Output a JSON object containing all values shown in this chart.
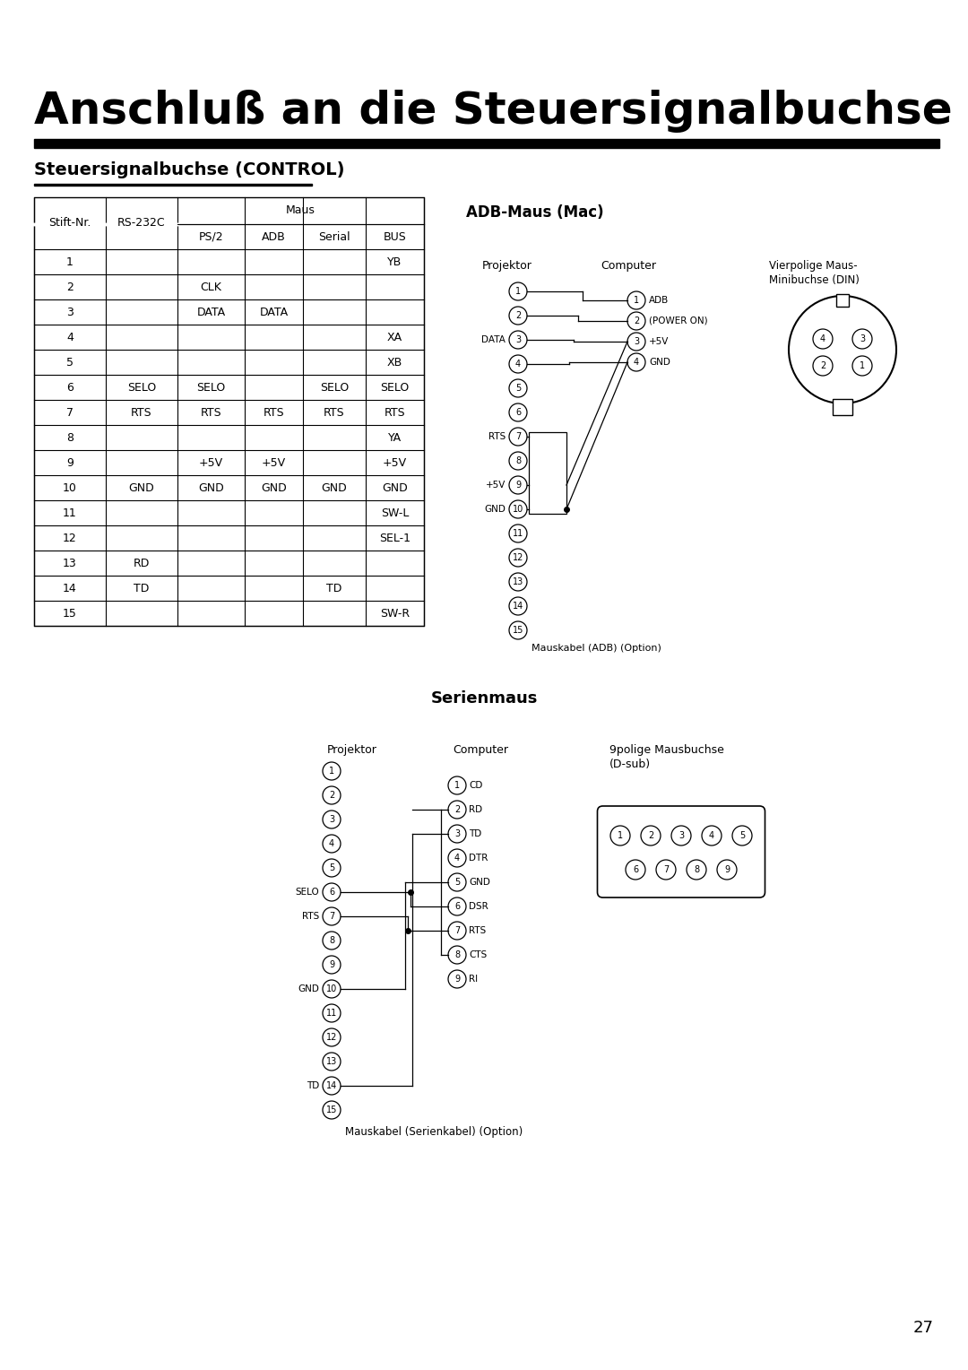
{
  "title": "Anschluß an die Steuersignalbuchse (Fortsetzung)",
  "subtitle": "Steuersignalbuchse (CONTROL)",
  "adb_title": "ADB-Maus (Mac)",
  "serial_title": "Serienmaus",
  "maus_header": "Maus",
  "table_data": [
    [
      "1",
      "",
      "",
      "",
      "",
      "YB"
    ],
    [
      "2",
      "",
      "CLK",
      "",
      "",
      ""
    ],
    [
      "3",
      "",
      "DATA",
      "DATA",
      "",
      ""
    ],
    [
      "4",
      "",
      "",
      "",
      "",
      "XA"
    ],
    [
      "5",
      "",
      "",
      "",
      "",
      "XB"
    ],
    [
      "6",
      "SELO",
      "SELO",
      "",
      "SELO",
      "SELO"
    ],
    [
      "7",
      "RTS",
      "RTS",
      "RTS",
      "RTS",
      "RTS"
    ],
    [
      "8",
      "",
      "",
      "",
      "",
      "YA"
    ],
    [
      "9",
      "",
      "+5V",
      "+5V",
      "",
      "+5V"
    ],
    [
      "10",
      "GND",
      "GND",
      "GND",
      "GND",
      "GND"
    ],
    [
      "11",
      "",
      "",
      "",
      "",
      "SW-L"
    ],
    [
      "12",
      "",
      "",
      "",
      "",
      "SEL-1"
    ],
    [
      "13",
      "RD",
      "",
      "",
      "",
      ""
    ],
    [
      "14",
      "TD",
      "",
      "",
      "TD",
      ""
    ],
    [
      "15",
      "",
      "",
      "",
      "",
      "SW-R"
    ]
  ],
  "page_number": "27",
  "bg_color": "#ffffff"
}
